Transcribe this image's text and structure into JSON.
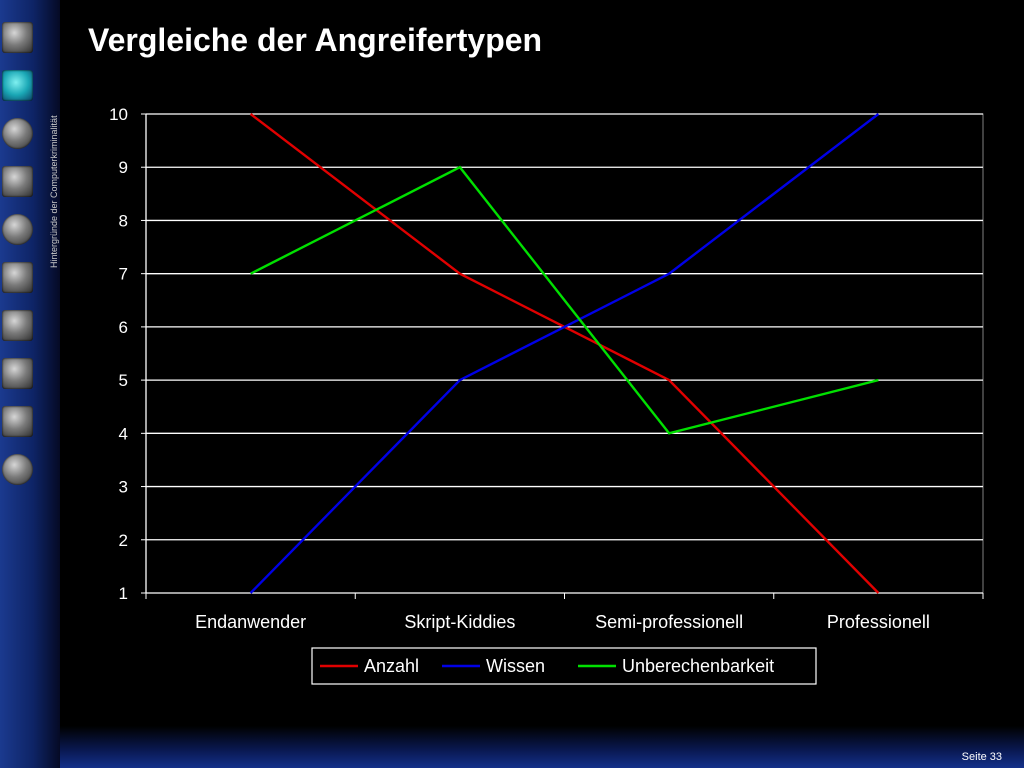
{
  "slide": {
    "title": "Vergleiche der Angreifertypen",
    "vertical_caption": "Hintergründe der Computerkriminalität",
    "page_label": "Seite",
    "page_number": "33",
    "sidebar_icons": [
      "circuit-board-icon",
      "hacker-head-icon",
      "hand-icon",
      "computer-icon",
      "comet-icon",
      "robot-icon",
      "maze-icon",
      "hand-sign-icon",
      "masked-man-icon",
      "clown-icon"
    ]
  },
  "chart_data": {
    "type": "line",
    "title": "",
    "xlabel": "",
    "ylabel": "",
    "categories": [
      "Endanwender",
      "Skript-Kiddies",
      "Semi-professionell",
      "Professionell"
    ],
    "ylim": [
      1,
      10
    ],
    "yticks": [
      "1",
      "2",
      "3",
      "4",
      "5",
      "6",
      "7",
      "8",
      "9",
      "10"
    ],
    "grid": true,
    "legend_position": "bottom",
    "series": [
      {
        "name": "Anzahl",
        "color": "#e00000",
        "values": [
          10,
          7,
          5,
          1
        ]
      },
      {
        "name": "Wissen",
        "color": "#0000e6",
        "values": [
          1,
          5,
          7,
          10
        ]
      },
      {
        "name": "Unberechenbarkeit",
        "color": "#00e000",
        "values": [
          7,
          9,
          4,
          5
        ]
      }
    ]
  }
}
